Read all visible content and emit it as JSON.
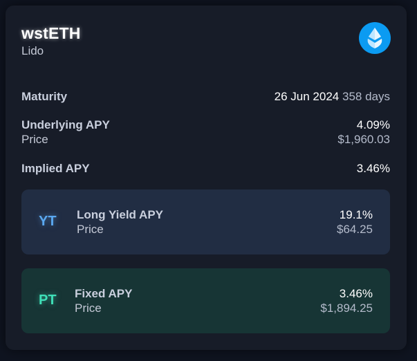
{
  "asset": {
    "name": "wstETH",
    "issuer": "Lido",
    "logo_icon": "lido-drop-icon"
  },
  "maturity": {
    "label": "Maturity",
    "date": "26 Jun 2024",
    "days": "358 days"
  },
  "underlying": {
    "label": "Underlying APY",
    "apy": "4.09%",
    "price_label": "Price",
    "price": "$1,960.03"
  },
  "implied": {
    "label": "Implied APY",
    "apy": "3.46%"
  },
  "yt": {
    "badge": "YT",
    "title": "Long Yield APY",
    "apy": "19.1%",
    "price_label": "Price",
    "price": "$64.25"
  },
  "pt": {
    "badge": "PT",
    "title": "Fixed APY",
    "apy": "3.46%",
    "price_label": "Price",
    "price": "$1,894.25"
  },
  "colors": {
    "background": "#0f1420",
    "card": "#171c28",
    "yt_panel": "#212d43",
    "pt_panel": "#173535",
    "yt_accent": "#5aa8f0",
    "pt_accent": "#3fe0b8",
    "logo_bg": "#0b9bf2"
  }
}
